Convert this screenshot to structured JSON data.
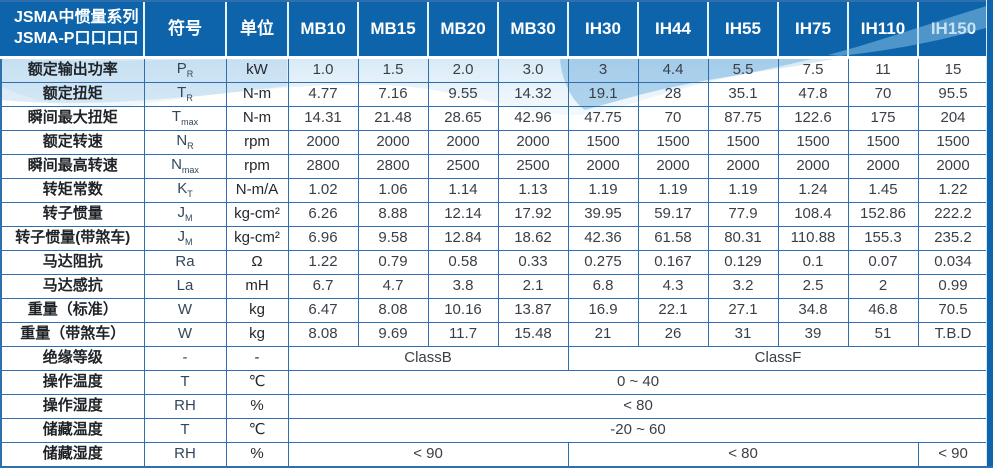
{
  "colors": {
    "header_blue": "#0d64aa",
    "grid_blue": "#2e6fae",
    "wave_blue": "#7ab5e0",
    "header_text": "#ffffff",
    "data_text": "#3a3f46"
  },
  "table": {
    "header": {
      "series_title_line1": "JSMA中惯量系列",
      "series_title_line2": "JSMA-P口口口口",
      "symbol_label": "符号",
      "unit_label": "单位",
      "models": [
        "MB10",
        "MB15",
        "MB20",
        "MB30",
        "IH30",
        "IH44",
        "IH55",
        "IH75",
        "IH110",
        "IH150"
      ]
    },
    "rows": [
      {
        "label": "额定输出功率",
        "sym": "P",
        "sym_sub": "R",
        "unit": "kW",
        "values": [
          "1.0",
          "1.5",
          "2.0",
          "3.0",
          "3",
          "4.4",
          "5.5",
          "7.5",
          "11",
          "15"
        ]
      },
      {
        "label": "额定扭矩",
        "sym": "T",
        "sym_sub": "R",
        "unit": "N-m",
        "values": [
          "4.77",
          "7.16",
          "9.55",
          "14.32",
          "19.1",
          "28",
          "35.1",
          "47.8",
          "70",
          "95.5"
        ]
      },
      {
        "label": "瞬间最大扭矩",
        "sym": "T",
        "sym_sub": "max",
        "unit": "N-m",
        "values": [
          "14.31",
          "21.48",
          "28.65",
          "42.96",
          "47.75",
          "70",
          "87.75",
          "122.6",
          "175",
          "204"
        ]
      },
      {
        "label": "额定转速",
        "sym": "N",
        "sym_sub": "R",
        "unit": "rpm",
        "values": [
          "2000",
          "2000",
          "2000",
          "2000",
          "1500",
          "1500",
          "1500",
          "1500",
          "1500",
          "1500"
        ]
      },
      {
        "label": "瞬间最高转速",
        "sym": "N",
        "sym_sub": "max",
        "unit": "rpm",
        "values": [
          "2800",
          "2800",
          "2500",
          "2500",
          "2000",
          "2000",
          "2000",
          "2000",
          "2000",
          "2000"
        ]
      },
      {
        "label": "转矩常数",
        "sym": "K",
        "sym_sub": "T",
        "unit": "N-m/A",
        "values": [
          "1.02",
          "1.06",
          "1.14",
          "1.13",
          "1.19",
          "1.19",
          "1.19",
          "1.24",
          "1.45",
          "1.22"
        ]
      },
      {
        "label": "转子惯量",
        "sym": "J",
        "sym_sub": "M",
        "unit": "kg-cm²",
        "values": [
          "6.26",
          "8.88",
          "12.14",
          "17.92",
          "39.95",
          "59.17",
          "77.9",
          "108.4",
          "152.86",
          "222.2"
        ]
      },
      {
        "label": "转子惯量(带煞车)",
        "sym": "J",
        "sym_sub": "M",
        "unit": "kg-cm²",
        "values": [
          "6.96",
          "9.58",
          "12.84",
          "18.62",
          "42.36",
          "61.58",
          "80.31",
          "110.88",
          "155.3",
          "235.2"
        ]
      },
      {
        "label": "马达阻抗",
        "sym": "Ra",
        "sym_sub": "",
        "unit": "Ω",
        "values": [
          "1.22",
          "0.79",
          "0.58",
          "0.33",
          "0.275",
          "0.167",
          "0.129",
          "0.1",
          "0.07",
          "0.034"
        ]
      },
      {
        "label": "马达感抗",
        "sym": "La",
        "sym_sub": "",
        "unit": "mH",
        "values": [
          "6.7",
          "4.7",
          "3.8",
          "2.1",
          "6.8",
          "4.3",
          "3.2",
          "2.5",
          "2",
          "0.99"
        ]
      },
      {
        "label": "重量（标准）",
        "sym": "W",
        "sym_sub": "",
        "unit": "kg",
        "values": [
          "6.47",
          "8.08",
          "10.16",
          "13.87",
          "16.9",
          "22.1",
          "27.1",
          "34.8",
          "46.8",
          "70.5"
        ]
      },
      {
        "label": "重量（带煞车）",
        "sym": "W",
        "sym_sub": "",
        "unit": "kg",
        "values": [
          "8.08",
          "9.69",
          "11.7",
          "15.48",
          "21",
          "26",
          "31",
          "39",
          "51",
          "T.B.D"
        ]
      },
      {
        "label": "绝缘等级",
        "sym": "-",
        "sym_sub": "",
        "unit": "-",
        "merged": [
          {
            "text": "ClassB",
            "span": 4
          },
          {
            "text": "ClassF",
            "span": 6
          }
        ]
      },
      {
        "label": "操作温度",
        "sym": "T",
        "sym_sub": "",
        "unit": "℃",
        "merged": [
          {
            "text": "0 ~ 40",
            "span": 10
          }
        ]
      },
      {
        "label": "操作湿度",
        "sym": "RH",
        "sym_sub": "",
        "unit": "%",
        "merged": [
          {
            "text": "< 80",
            "span": 10
          }
        ]
      },
      {
        "label": "储藏温度",
        "sym": "T",
        "sym_sub": "",
        "unit": "℃",
        "merged": [
          {
            "text": "-20 ~ 60",
            "span": 10
          }
        ]
      },
      {
        "label": "储藏湿度",
        "sym": "RH",
        "sym_sub": "",
        "unit": "%",
        "merged": [
          {
            "text": "< 90",
            "span": 4
          },
          {
            "text": "< 80",
            "span": 5
          },
          {
            "text": "< 90",
            "span": 1
          }
        ]
      }
    ]
  }
}
